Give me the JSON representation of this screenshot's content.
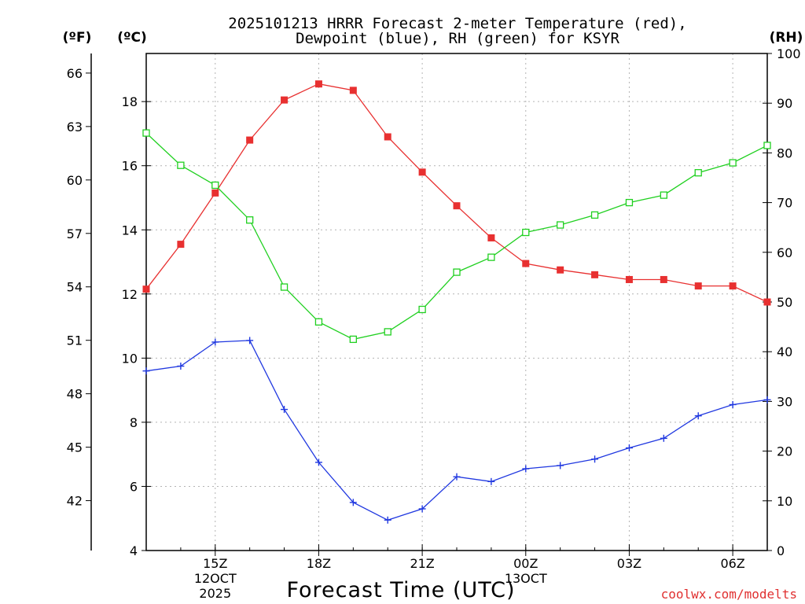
{
  "chart_data": {
    "type": "line",
    "title_lines": [
      "2025101213 HRRR Forecast 2-meter Temperature (red),",
      "Dewpoint (blue), RH (green) for KSYR"
    ],
    "xlabel": "Forecast Time (UTC)",
    "credit": "coolwx.com/modelts",
    "unit_labels": {
      "fahrenheit": "(ºF)",
      "celsius": "(ºC)",
      "rh": "(RH)"
    },
    "x_hours": [
      13,
      14,
      15,
      16,
      17,
      18,
      19,
      20,
      21,
      22,
      23,
      24,
      25,
      26,
      27,
      28,
      29,
      30,
      31
    ],
    "xlim": [
      13,
      31
    ],
    "x_ticks": [
      {
        "hour": 15,
        "lines": [
          "15Z",
          "12OCT",
          "2025"
        ]
      },
      {
        "hour": 18,
        "lines": [
          "18Z"
        ]
      },
      {
        "hour": 21,
        "lines": [
          "21Z"
        ]
      },
      {
        "hour": 24,
        "lines": [
          "00Z",
          "13OCT"
        ]
      },
      {
        "hour": 27,
        "lines": [
          "03Z"
        ]
      },
      {
        "hour": 30,
        "lines": [
          "06Z"
        ]
      }
    ],
    "celsius_axis": {
      "ylim": [
        4,
        19.5
      ],
      "ticks": [
        4,
        6,
        8,
        10,
        12,
        14,
        16,
        18
      ]
    },
    "fahrenheit_axis": {
      "ticks": [
        42,
        45,
        48,
        51,
        54,
        57,
        60,
        63,
        66
      ]
    },
    "rh_axis": {
      "ylim": [
        0,
        100
      ],
      "ticks": [
        0,
        10,
        20,
        30,
        40,
        50,
        60,
        70,
        80,
        90,
        100
      ]
    },
    "series": [
      {
        "name": "Temperature",
        "units": "°C",
        "axis": "celsius",
        "color": "#e83030",
        "marker": "filled-square",
        "values": [
          12.15,
          13.55,
          15.15,
          16.8,
          18.05,
          18.55,
          18.35,
          16.9,
          15.8,
          14.75,
          13.75,
          12.95,
          12.75,
          12.6,
          12.45,
          12.45,
          12.25,
          12.25,
          11.75
        ]
      },
      {
        "name": "Dewpoint",
        "units": "°C",
        "axis": "celsius",
        "color": "#2038e0",
        "marker": "plus",
        "values": [
          9.6,
          9.75,
          10.5,
          10.55,
          8.4,
          6.75,
          5.5,
          4.95,
          5.3,
          6.3,
          6.15,
          6.55,
          6.65,
          6.85,
          7.2,
          7.5,
          8.2,
          8.55,
          8.7
        ]
      },
      {
        "name": "RH",
        "units": "%",
        "axis": "rh",
        "color": "#20d020",
        "marker": "open-square",
        "values": [
          84,
          77.5,
          73.5,
          66.5,
          53,
          46,
          42.5,
          44,
          48.5,
          56,
          59,
          64,
          65.5,
          67.5,
          70,
          71.5,
          76,
          78,
          81.5
        ]
      }
    ]
  }
}
